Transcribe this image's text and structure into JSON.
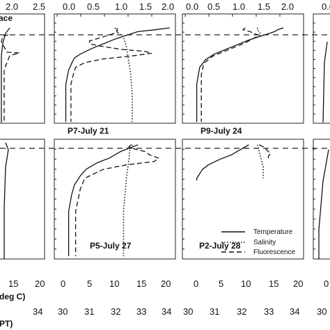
{
  "chart_data": {
    "type": "line",
    "description_axes": {
      "top_axis_ticks": [
        "0.0",
        "0.5",
        "1.0",
        "1.5",
        "2.0",
        "2.5"
      ],
      "top_axis_partial_left": [
        "2.0",
        "2.5"
      ],
      "top_axis_title_fragment": "ace",
      "bottom_temp_ticks": [
        "0",
        "5",
        "10",
        "15",
        "20"
      ],
      "bottom_temp_partial_left": [
        "15",
        "20"
      ],
      "bottom_temp_title_fragment": "deg C)",
      "bottom_sal_ticks": [
        "30",
        "31",
        "32",
        "33",
        "34"
      ],
      "bottom_sal_partial_left": [
        "34"
      ],
      "bottom_sal_title_fragment": "PT)"
    },
    "legend": {
      "entries": [
        {
          "label": "Temperature",
          "style": "solid"
        },
        {
          "label": "Salinity",
          "style": "dotted"
        },
        {
          "label": "Fluorescence",
          "style": "dashed"
        }
      ],
      "placement": "bottom-right of panel P2-July 28"
    },
    "panels": [
      {
        "label": "P7-July 21",
        "series": {
          "fluorescence": {
            "x": [
              1.3,
              1.3,
              1.1,
              0.9,
              0.7,
              0.7,
              1.0,
              1.4,
              1.9,
              2.05,
              1.6,
              1.0,
              0.6,
              0.4,
              0.35,
              0.3,
              0.3,
              0.3,
              0.3
            ],
            "depth": [
              0,
              0.05,
              0.08,
              0.11,
              0.14,
              0.17,
              0.2,
              0.23,
              0.25,
              0.27,
              0.3,
              0.33,
              0.37,
              0.42,
              0.5,
              0.6,
              0.75,
              0.9,
              1.0
            ]
          },
          "temperature": {
            "x": [
              19.5,
              17,
              14,
              12,
              10,
              8,
              6,
              4,
              3,
              2.5,
              2,
              1.5,
              1.5,
              1.5,
              1.5
            ],
            "depth": [
              0,
              0.02,
              0.04,
              0.08,
              0.12,
              0.17,
              0.22,
              0.28,
              0.32,
              0.38,
              0.45,
              0.6,
              0.75,
              0.9,
              1.0
            ]
          },
          "salinity": {
            "x": [
              32.0,
              32.1,
              32.3,
              32.4,
              32.45,
              32.5,
              32.55,
              32.6,
              32.6,
              32.6
            ],
            "depth": [
              0,
              0.05,
              0.1,
              0.2,
              0.3,
              0.4,
              0.5,
              0.7,
              0.9,
              1.0
            ]
          }
        }
      },
      {
        "label": "P9-July 24",
        "series": {
          "fluorescence": {
            "x": [
              1.3,
              1.25,
              1.4,
              1.5,
              1.6,
              1.45,
              1.3,
              1.0,
              0.6,
              0.4,
              0.35,
              0.35,
              0.35,
              0.35
            ],
            "depth": [
              0,
              0.02,
              0.04,
              0.06,
              0.08,
              0.12,
              0.16,
              0.22,
              0.3,
              0.38,
              0.5,
              0.7,
              0.9,
              1.0
            ]
          },
          "temperature": {
            "x": [
              17,
              16,
              15.5,
              14.5,
              13,
              11,
              9,
              7,
              5,
              3.5,
              2.5,
              2,
              2,
              2
            ],
            "depth": [
              0,
              0.02,
              0.04,
              0.06,
              0.09,
              0.13,
              0.18,
              0.23,
              0.28,
              0.34,
              0.42,
              0.6,
              0.8,
              1.0
            ]
          },
          "salinity": {
            "x": [
              32.5,
              32.5,
              32.55,
              32.6,
              32.6,
              32.6
            ],
            "depth": [
              0,
              0.02,
              0.04,
              0.06,
              0.08,
              0.1
            ]
          }
        }
      },
      {
        "label": "P5-July 27",
        "series": {
          "fluorescence": {
            "x": [
              1.6,
              1.55,
              1.7,
              1.9,
              2.0,
              2.2,
              2.1,
              1.5,
              1.0,
              0.6,
              0.5,
              0.4,
              0.4,
              0.4
            ],
            "depth": [
              0,
              0.02,
              0.04,
              0.06,
              0.09,
              0.12,
              0.15,
              0.18,
              0.22,
              0.3,
              0.4,
              0.6,
              0.8,
              1.0
            ]
          },
          "temperature": {
            "x": [
              14,
              13,
              12,
              11,
              10,
              9,
              7,
              5,
              4,
              3,
              2.5,
              2,
              2,
              2
            ],
            "depth": [
              0,
              0.02,
              0.04,
              0.06,
              0.09,
              0.12,
              0.16,
              0.22,
              0.28,
              0.36,
              0.45,
              0.6,
              0.8,
              1.0
            ]
          },
          "salinity": {
            "x": [
              32.6,
              32.55,
              32.5,
              32.5,
              32.45,
              32.4,
              32.35,
              32.3,
              32.3,
              32.3
            ],
            "depth": [
              0,
              0.03,
              0.06,
              0.1,
              0.2,
              0.3,
              0.45,
              0.6,
              0.8,
              1.0
            ]
          }
        }
      },
      {
        "label": "P2-July 28",
        "series": {
          "fluorescence": {
            "x": [
              1.6,
              1.7,
              1.75,
              1.8,
              1.85,
              1.8,
              1.8
            ],
            "depth": [
              0,
              0.02,
              0.04,
              0.06,
              0.08,
              0.1,
              0.12
            ]
          },
          "temperature": {
            "x": [
              11,
              10,
              9,
              8,
              6,
              4,
              3,
              2.5,
              2,
              2
            ],
            "depth": [
              0,
              0.03,
              0.06,
              0.09,
              0.13,
              0.18,
              0.22,
              0.26,
              0.3,
              0.32
            ]
          },
          "salinity": {
            "x": [
              32.5,
              32.55,
              32.6,
              32.65,
              32.7,
              32.7,
              32.7
            ],
            "depth": [
              0,
              0.05,
              0.1,
              0.15,
              0.2,
              0.25,
              0.3
            ]
          }
        }
      }
    ],
    "surface_line": "dashed horizontal reference line near top of each panel row"
  }
}
